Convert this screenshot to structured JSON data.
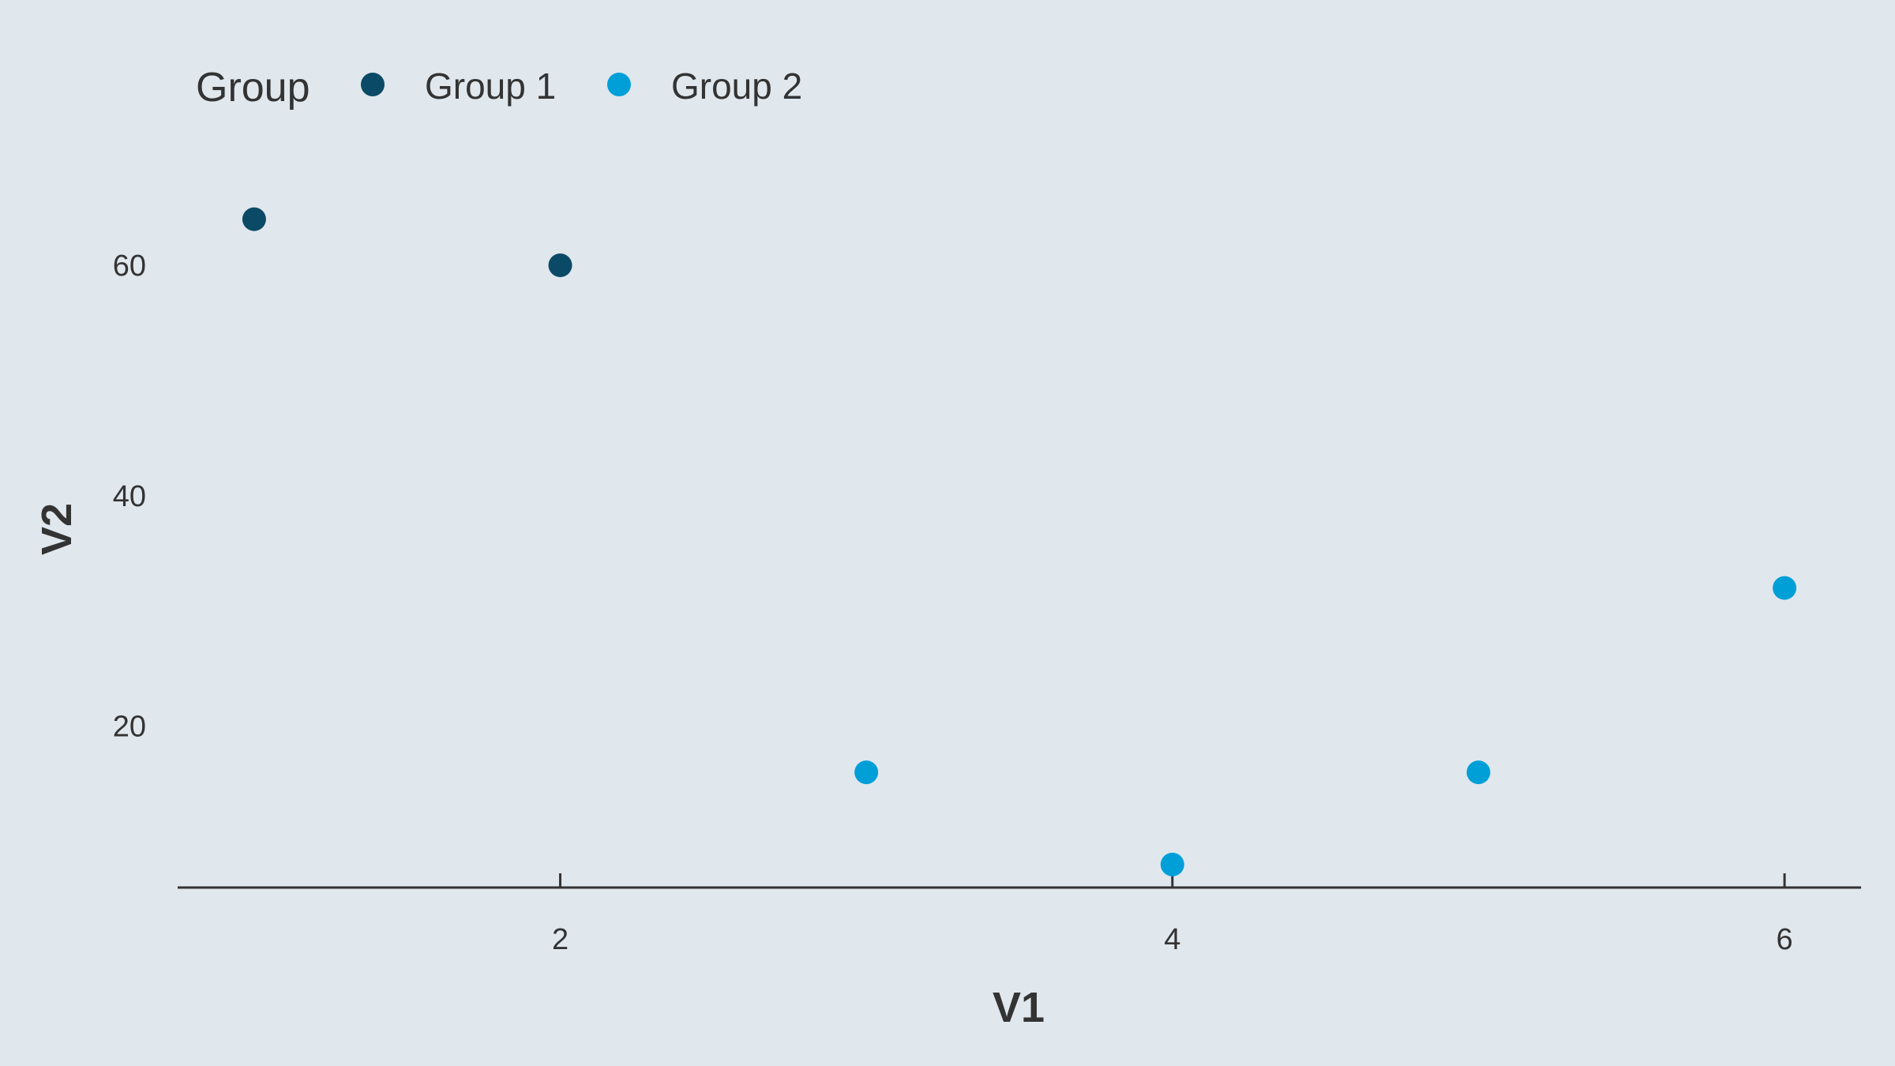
{
  "chart_data": {
    "type": "scatter",
    "xlabel": "V1",
    "ylabel": "V2",
    "xlim": [
      0.75,
      6.25
    ],
    "ylim": [
      6,
      70
    ],
    "x_ticks": [
      2,
      4,
      6
    ],
    "y_ticks": [
      20,
      40,
      60
    ],
    "grid": false,
    "legend": {
      "title": "Group",
      "placement": "top-left",
      "orientation": "horizontal"
    },
    "series": [
      {
        "name": "Group 1",
        "color": "#0b4a66",
        "points": [
          {
            "x": 1,
            "y": 64
          },
          {
            "x": 2,
            "y": 60
          }
        ]
      },
      {
        "name": "Group 2",
        "color": "#009fd8",
        "points": [
          {
            "x": 3,
            "y": 16
          },
          {
            "x": 4,
            "y": 8
          },
          {
            "x": 5,
            "y": 16
          },
          {
            "x": 6,
            "y": 32
          }
        ]
      }
    ]
  }
}
